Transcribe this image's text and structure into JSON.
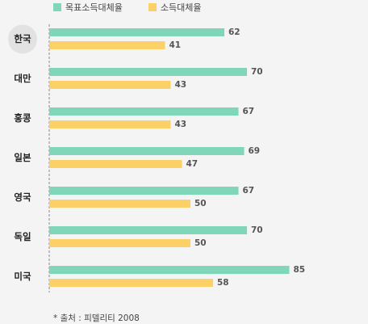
{
  "legend": [
    {
      "name": "목표소득대체율",
      "color": "#7fd6b8"
    },
    {
      "name": "소득대체율",
      "color": "#fbd066"
    }
  ],
  "source_note": "* 출처 : 피델리티 2008",
  "highlight_color": "#e2e2e2",
  "chart_data": {
    "type": "bar",
    "orientation": "horizontal",
    "categories": [
      "한국",
      "대만",
      "홍콩",
      "일본",
      "영국",
      "독일",
      "미국"
    ],
    "highlighted_category": "한국",
    "series": [
      {
        "name": "목표소득대체율",
        "values": [
          62,
          70,
          67,
          69,
          67,
          70,
          85
        ],
        "color": "#7fd6b8"
      },
      {
        "name": "소득대체율",
        "values": [
          41,
          43,
          43,
          47,
          50,
          50,
          58
        ],
        "color": "#fbd066"
      }
    ],
    "xlim": [
      0,
      100
    ],
    "grid": false,
    "legend_position": "top-left"
  }
}
